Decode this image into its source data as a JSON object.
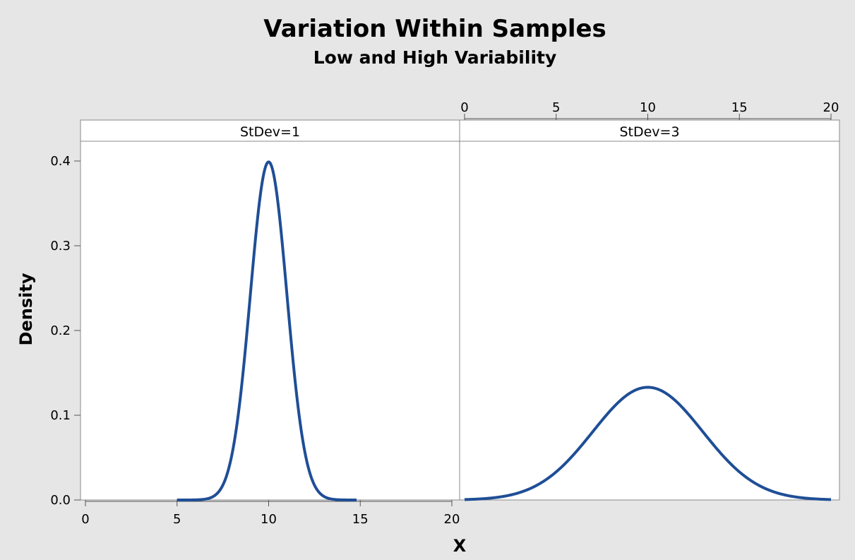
{
  "chart_data": {
    "type": "line",
    "title": "Variation Within Samples",
    "subtitle": "Low and High Variability",
    "xlabel": "X",
    "ylabel": "Density",
    "xlim": [
      0,
      20
    ],
    "ylim": [
      0,
      0.4
    ],
    "x_ticks": [
      0,
      5,
      10,
      15,
      20
    ],
    "y_ticks": [
      0.0,
      0.1,
      0.2,
      0.3,
      0.4
    ],
    "y_tick_labels": [
      "0.0",
      "0.1",
      "0.2",
      "0.3",
      "0.4"
    ],
    "grid": false,
    "line_color": "#1f4e96",
    "panels": [
      {
        "label": "StDev=1",
        "mean": 10,
        "stdev": 1,
        "x_range": [
          5,
          14.8
        ],
        "x_axis_position": "bottom",
        "series": [
          {
            "x": [
              5,
              6,
              7,
              7.5,
              8,
              8.5,
              9,
              9.5,
              10,
              10.5,
              11,
              11.5,
              12,
              12.5,
              13,
              14,
              14.8
            ],
            "values": [
              0.0,
              0.0001,
              0.0044,
              0.0175,
              0.054,
              0.1295,
              0.242,
              0.3521,
              0.3989,
              0.3521,
              0.242,
              0.1295,
              0.054,
              0.0175,
              0.0044,
              0.0001,
              0.0
            ]
          }
        ]
      },
      {
        "label": "StDev=3",
        "mean": 10,
        "stdev": 3,
        "x_range": [
          0,
          20
        ],
        "x_axis_position": "top",
        "series": [
          {
            "x": [
              0,
              1,
              2,
              3,
              4,
              5,
              6,
              7,
              8,
              9,
              10,
              11,
              12,
              13,
              14,
              15,
              16,
              17,
              18,
              19,
              20
            ],
            "values": [
              0.0005,
              0.0015,
              0.0038,
              0.0087,
              0.018,
              0.0332,
              0.0547,
              0.0807,
              0.1065,
              0.1258,
              0.133,
              0.1258,
              0.1065,
              0.0807,
              0.0547,
              0.0332,
              0.018,
              0.0087,
              0.0038,
              0.0015,
              0.0005
            ]
          }
        ]
      }
    ]
  }
}
